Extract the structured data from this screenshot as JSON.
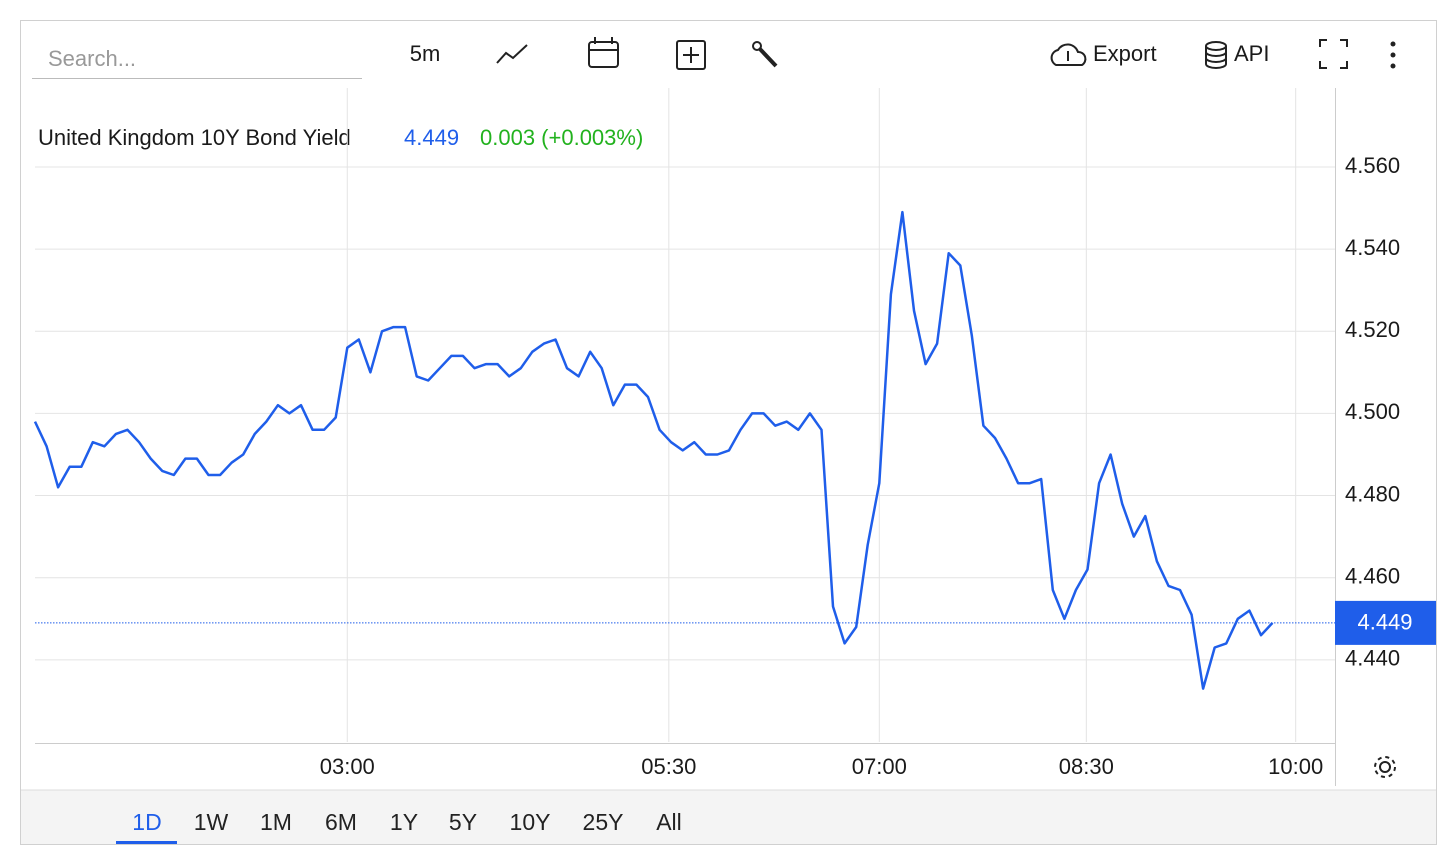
{
  "toolbar": {
    "search_placeholder": "Search...",
    "interval": "5m",
    "export": "Export",
    "api": "API",
    "ranges": [
      "1D",
      "1W",
      "1M",
      "6M",
      "1Y",
      "5Y",
      "10Y",
      "25Y",
      "All"
    ]
  },
  "chart_data": {
    "type": "line",
    "title": "United Kingdom 10Y Bond Yield",
    "price": 4.449,
    "change": "0.003 (+0.003%)",
    "series": [
      {
        "name": "United Kingdom 10Y Bond Yield",
        "color": "#1f5eea",
        "values": [
          4.498,
          4.492,
          4.482,
          4.487,
          4.487,
          4.493,
          4.492,
          4.495,
          4.496,
          4.493,
          4.489,
          4.486,
          4.485,
          4.489,
          4.489,
          4.485,
          4.485,
          4.488,
          4.49,
          4.495,
          4.498,
          4.502,
          4.5,
          4.502,
          4.496,
          4.496,
          4.499,
          4.516,
          4.518,
          4.51,
          4.52,
          4.521,
          4.521,
          4.509,
          4.508,
          4.511,
          4.514,
          4.514,
          4.511,
          4.512,
          4.512,
          4.509,
          4.511,
          4.515,
          4.517,
          4.518,
          4.511,
          4.509,
          4.515,
          4.511,
          4.502,
          4.507,
          4.507,
          4.504,
          4.496,
          4.493,
          4.491,
          4.493,
          4.49,
          4.49,
          4.491,
          4.496,
          4.5,
          4.5,
          4.497,
          4.498,
          4.496,
          4.5,
          4.496,
          4.453,
          4.444,
          4.448,
          4.468,
          4.483,
          4.529,
          4.549,
          4.525,
          4.512,
          4.517,
          4.539,
          4.536,
          4.519,
          4.497,
          4.494,
          4.489,
          4.483,
          4.483,
          4.484,
          4.457,
          4.45,
          4.457,
          4.462,
          4.483,
          4.49,
          4.478,
          4.47,
          4.475,
          4.464,
          4.458,
          4.457,
          4.451,
          4.433,
          4.443,
          4.444,
          4.45,
          4.452,
          4.446,
          4.449
        ]
      }
    ],
    "xlim": [
      0,
      112.4
    ],
    "xticks": [
      {
        "value": 27,
        "label": "03:00"
      },
      {
        "value": 54.8,
        "label": "05:30"
      },
      {
        "value": 73,
        "label": "07:00"
      },
      {
        "value": 90.9,
        "label": "08:30"
      },
      {
        "value": 109,
        "label": "10:00"
      }
    ],
    "ylim": [
      4.42,
      4.58
    ],
    "yticks": [
      {
        "value": 4.44,
        "label": "4.440"
      },
      {
        "value": 4.46,
        "label": "4.460"
      },
      {
        "value": 4.48,
        "label": "4.480"
      },
      {
        "value": 4.5,
        "label": "4.500"
      },
      {
        "value": 4.52,
        "label": "4.520"
      },
      {
        "value": 4.54,
        "label": "4.540"
      },
      {
        "value": 4.56,
        "label": "4.560"
      }
    ],
    "grid": true
  }
}
